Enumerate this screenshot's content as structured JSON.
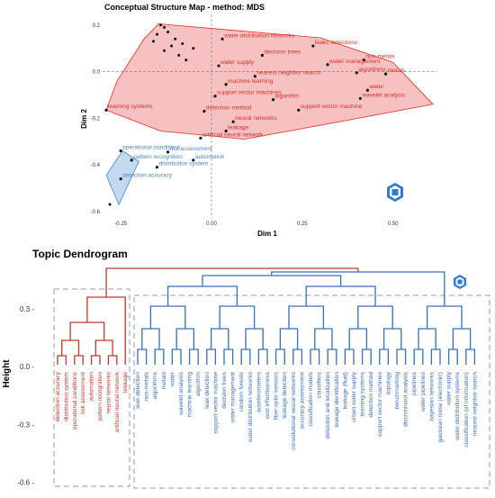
{
  "chart_data": [
    {
      "type": "scatter",
      "title": "Conceptual Structure Map - method: MDS",
      "xlabel": "Dim 1",
      "ylabel": "Dim 2",
      "xlim": [
        -0.3,
        0.62
      ],
      "ylim": [
        -0.62,
        0.23
      ],
      "xticks": [
        -0.25,
        0.0,
        0.25,
        0.5
      ],
      "xtick_labels": [
        "-0.25",
        "0.00",
        "0.25",
        "0.50"
      ],
      "yticks": [
        0.2,
        0.0,
        -0.2,
        -0.4,
        -0.6
      ],
      "ytick_labels": [
        "0.2",
        "0.0",
        "-0.2",
        "-0.4",
        "-0.6"
      ],
      "grid": false,
      "reference_lines": {
        "x": 0,
        "y": 0,
        "style": "dashed"
      },
      "clusters": [
        {
          "color": "#d73027",
          "fill": "#f4a6a6",
          "hull": [
            [
              -0.146,
              0.205
            ],
            [
              0.3,
              0.145
            ],
            [
              0.5,
              0.04
            ],
            [
              0.61,
              -0.14
            ],
            [
              0.37,
              -0.21
            ],
            [
              0.09,
              -0.29
            ],
            [
              -0.14,
              -0.255
            ],
            [
              -0.29,
              -0.165
            ],
            [
              -0.26,
              -0.04
            ],
            [
              -0.186,
              0.14
            ]
          ],
          "points": [
            {
              "label": "water distribution networks",
              "x": 0.03,
              "y": 0.14
            },
            {
              "label": "leaks detections",
              "x": 0.28,
              "y": 0.11
            },
            {
              "label": "decision trees",
              "x": 0.14,
              "y": 0.07
            },
            {
              "label": "non-metals",
              "x": 0.42,
              "y": 0.05
            },
            {
              "label": "water management",
              "x": 0.32,
              "y": 0.03
            },
            {
              "label": "water supply",
              "x": 0.02,
              "y": 0.025
            },
            {
              "label": "algorithms",
              "x": 0.4,
              "y": -0.005
            },
            {
              "label": "metals",
              "x": 0.48,
              "y": -0.01
            },
            {
              "label": "nearest neighbor search",
              "x": 0.12,
              "y": -0.02
            },
            {
              "label": "machine learning",
              "x": 0.04,
              "y": -0.055
            },
            {
              "label": "water",
              "x": 0.43,
              "y": -0.08
            },
            {
              "label": "support vector machines",
              "x": 0.01,
              "y": -0.105
            },
            {
              "label": "wavelet analysis",
              "x": 0.41,
              "y": -0.115
            },
            {
              "label": "algorithm",
              "x": 0.17,
              "y": -0.12
            },
            {
              "label": "support vector machine",
              "x": 0.24,
              "y": -0.165
            },
            {
              "label": "learning systems",
              "x": -0.29,
              "y": -0.165
            },
            {
              "label": "detection method",
              "x": -0.02,
              "y": -0.17
            },
            {
              "label": "neural networks",
              "x": 0.06,
              "y": -0.215
            },
            {
              "label": "leakage",
              "x": 0.04,
              "y": -0.255
            },
            {
              "label": "artificial neural network",
              "x": -0.03,
              "y": -0.285
            }
          ]
        },
        {
          "color": "#4a86c5",
          "fill": "#a6cbe8",
          "hull": [
            [
              -0.245,
              -0.34
            ],
            [
              -0.2,
              -0.385
            ],
            [
              -0.255,
              -0.57
            ],
            [
              -0.29,
              -0.445
            ]
          ],
          "points": [
            {
              "label": "operational conditions",
              "x": -0.25,
              "y": -0.34
            },
            {
              "label": "risk assessment",
              "x": -0.12,
              "y": -0.345
            },
            {
              "label": "pattern recognition",
              "x": -0.22,
              "y": -0.38
            },
            {
              "label": "automation",
              "x": -0.05,
              "y": -0.38
            },
            {
              "label": "distribution system",
              "x": -0.15,
              "y": -0.41
            },
            {
              "label": "detection accuracy",
              "x": -0.25,
              "y": -0.46
            }
          ]
        }
      ]
    },
    {
      "type": "dendrogram",
      "title": "Topic Dendrogram",
      "ylabel": "Height",
      "yticks": [
        0.3,
        0.0,
        -0.3,
        -0.6
      ],
      "ytick_labels": [
        "0.3 -",
        "0.0 -",
        "-0.3 -",
        "-0.6 -"
      ],
      "ylim": [
        -0.62,
        0.5
      ],
      "clusters": [
        {
          "color": "#c0392b",
          "leaves": [
            "detection accuracy",
            "distribution system",
            "operational conditions",
            "risk assessment",
            "automation",
            "pattern recognition",
            "neural networks",
            "artificial neural network",
            "leakage"
          ]
        },
        {
          "color": "#3a6fb5",
          "leaves": [
            "leak detection",
            "non-metals",
            "algorithms",
            "metals",
            "water",
            "wavelet analysis",
            "machine learning",
            "algorithm",
            "leak detection",
            "support vector machine",
            "decision trees",
            "water management",
            "random forests",
            "water distribution networks",
            "accelerometers",
            "cost effectiveness",
            "fiber optic sensors",
            "leakage detection",
            "convolutional neural networks",
            "accuracy assessment",
            "classification models",
            "classifiers",
            "detection and localization",
            "leakage identification",
            "leakage (fluid)",
            "urban water supply",
            "learning systems",
            "detection method",
            "support vector machines",
            "topology",
            "benchmarking",
            "discriminant analysis",
            "pipelines",
            "water pipelines",
            "bayesian networks",
            "gaussian noise (electronic)",
            "water supply",
            "water distribution systems",
            "classification (of information)",
            "nearest neighbor search"
          ]
        }
      ]
    }
  ]
}
